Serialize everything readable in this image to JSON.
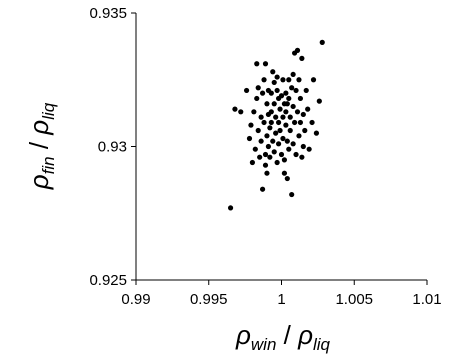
{
  "chart_data": {
    "type": "scatter",
    "title": "",
    "x_axis": {
      "label": {
        "main": "ρ",
        "sub": "win",
        "slash": " / ",
        "main2": "ρ",
        "sub2": "liq"
      },
      "lim": [
        0.99,
        1.01
      ],
      "ticks": [
        0.99,
        0.995,
        1,
        1.005,
        1.01
      ],
      "tick_labels": [
        "0.99",
        "0.995",
        "1",
        "1.005",
        "1.01"
      ]
    },
    "y_axis": {
      "label": {
        "main": "ρ",
        "sub": "fin",
        "slash": " / ",
        "main2": "ρ",
        "sub2": "liq"
      },
      "lim": [
        0.925,
        0.935
      ],
      "ticks": [
        0.925,
        0.93,
        0.935
      ],
      "tick_labels": [
        "0.925",
        "0.93",
        "0.935"
      ]
    },
    "grid": false,
    "legend": null,
    "marker_color": "#000000",
    "points": [
      [
        0.9965,
        0.9277
      ],
      [
        0.9968,
        0.9314
      ],
      [
        0.9972,
        0.9313
      ],
      [
        0.9976,
        0.9321
      ],
      [
        0.9978,
        0.9303
      ],
      [
        0.9979,
        0.9308
      ],
      [
        0.998,
        0.9294
      ],
      [
        0.9981,
        0.9313
      ],
      [
        0.9982,
        0.9299
      ],
      [
        0.9983,
        0.9331
      ],
      [
        0.9983,
        0.9318
      ],
      [
        0.9984,
        0.9306
      ],
      [
        0.9985,
        0.9296
      ],
      [
        0.9986,
        0.9311
      ],
      [
        0.9986,
        0.9302
      ],
      [
        0.9987,
        0.9284
      ],
      [
        0.9987,
        0.932
      ],
      [
        0.9988,
        0.9325
      ],
      [
        0.9988,
        0.9309
      ],
      [
        0.9989,
        0.9297
      ],
      [
        0.9989,
        0.9331
      ],
      [
        0.999,
        0.9316
      ],
      [
        0.999,
        0.9304
      ],
      [
        0.999,
        0.929
      ],
      [
        0.9991,
        0.9321
      ],
      [
        0.9991,
        0.9312
      ],
      [
        0.9991,
        0.93
      ],
      [
        0.9992,
        0.9307
      ],
      [
        0.9992,
        0.9296
      ],
      [
        0.9993,
        0.932
      ],
      [
        0.9993,
        0.9309
      ],
      [
        0.9993,
        0.9313
      ],
      [
        0.9994,
        0.9302
      ],
      [
        0.9995,
        0.9324
      ],
      [
        0.9995,
        0.9316
      ],
      [
        0.9995,
        0.9298
      ],
      [
        0.9996,
        0.9311
      ],
      [
        0.9996,
        0.9305
      ],
      [
        0.9997,
        0.9321
      ],
      [
        0.9997,
        0.9294
      ],
      [
        0.9998,
        0.9318
      ],
      [
        0.9998,
        0.9309
      ],
      [
        0.9998,
        0.9301
      ],
      [
        0.9999,
        0.9314
      ],
      [
        0.9999,
        0.9306
      ],
      [
        1.0,
        0.9319
      ],
      [
        1.0,
        0.9297
      ],
      [
        1.0001,
        0.9325
      ],
      [
        1.0001,
        0.9311
      ],
      [
        1.0001,
        0.9303
      ],
      [
        1.0002,
        0.9316
      ],
      [
        1.0002,
        0.9295
      ],
      [
        1.0003,
        0.932
      ],
      [
        1.0003,
        0.9308
      ],
      [
        1.0003,
        0.9313
      ],
      [
        1.0004,
        0.9288
      ],
      [
        1.0004,
        0.9302
      ],
      [
        1.0005,
        0.9318
      ],
      [
        1.0005,
        0.9325
      ],
      [
        1.0005,
        0.9299
      ],
      [
        1.0006,
        0.9311
      ],
      [
        1.0006,
        0.9306
      ],
      [
        1.0007,
        0.9322
      ],
      [
        1.0007,
        0.9282
      ],
      [
        1.0008,
        0.9315
      ],
      [
        1.0008,
        0.9301
      ],
      [
        1.0009,
        0.9309
      ],
      [
        1.0009,
        0.9335
      ],
      [
        1.001,
        0.9321
      ],
      [
        1.001,
        0.9297
      ],
      [
        1.0011,
        0.9313
      ],
      [
        1.0011,
        0.9336
      ],
      [
        1.0012,
        0.9304
      ],
      [
        1.0012,
        0.9325
      ],
      [
        1.0013,
        0.9318
      ],
      [
        1.0013,
        0.9309
      ],
      [
        1.0014,
        0.9333
      ],
      [
        1.0014,
        0.9296
      ],
      [
        1.0015,
        0.9312
      ],
      [
        1.0016,
        0.9306
      ],
      [
        1.0017,
        0.9321
      ],
      [
        1.0018,
        0.9314
      ],
      [
        1.0019,
        0.9299
      ],
      [
        1.0021,
        0.9309
      ],
      [
        1.0022,
        0.9325
      ],
      [
        1.0024,
        0.9305
      ],
      [
        1.0026,
        0.9317
      ],
      [
        1.0028,
        0.9339
      ],
      [
        0.9984,
        0.9322
      ],
      [
        0.9997,
        0.9326
      ],
      [
        1.0002,
        0.929
      ],
      [
        1.0008,
        0.9327
      ],
      [
        0.9994,
        0.9328
      ],
      [
        1.0004,
        0.9316
      ],
      [
        0.9989,
        0.9293
      ],
      [
        1.0015,
        0.93
      ]
    ]
  }
}
